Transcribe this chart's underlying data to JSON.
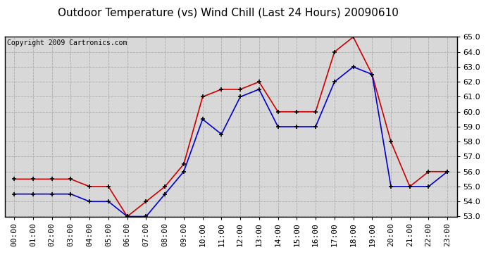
{
  "title": "Outdoor Temperature (vs) Wind Chill (Last 24 Hours) 20090610",
  "copyright": "Copyright 2009 Cartronics.com",
  "hours": [
    "00:00",
    "01:00",
    "02:00",
    "03:00",
    "04:00",
    "05:00",
    "06:00",
    "07:00",
    "08:00",
    "09:00",
    "10:00",
    "11:00",
    "12:00",
    "13:00",
    "14:00",
    "15:00",
    "16:00",
    "17:00",
    "18:00",
    "19:00",
    "20:00",
    "21:00",
    "22:00",
    "23:00"
  ],
  "outdoor_temp": [
    55.5,
    55.5,
    55.5,
    55.5,
    55.0,
    55.0,
    53.0,
    54.0,
    55.0,
    56.5,
    61.0,
    61.5,
    61.5,
    62.0,
    60.0,
    60.0,
    60.0,
    64.0,
    65.0,
    62.5,
    58.0,
    55.0,
    56.0,
    56.0
  ],
  "wind_chill": [
    54.5,
    54.5,
    54.5,
    54.5,
    54.0,
    54.0,
    53.0,
    53.0,
    54.5,
    56.0,
    59.5,
    58.5,
    61.0,
    61.5,
    59.0,
    59.0,
    59.0,
    62.0,
    63.0,
    62.5,
    55.0,
    55.0,
    55.0,
    56.0
  ],
  "temp_color": "#cc0000",
  "chill_color": "#0000cc",
  "ylim_min": 53.0,
  "ylim_max": 65.0,
  "ytick_step": 1.0,
  "bg_color": "#d8d8d8",
  "grid_color": "#aaaaaa",
  "title_fontsize": 11,
  "copyright_fontsize": 7,
  "axis_label_fontsize": 8,
  "marker": "+"
}
